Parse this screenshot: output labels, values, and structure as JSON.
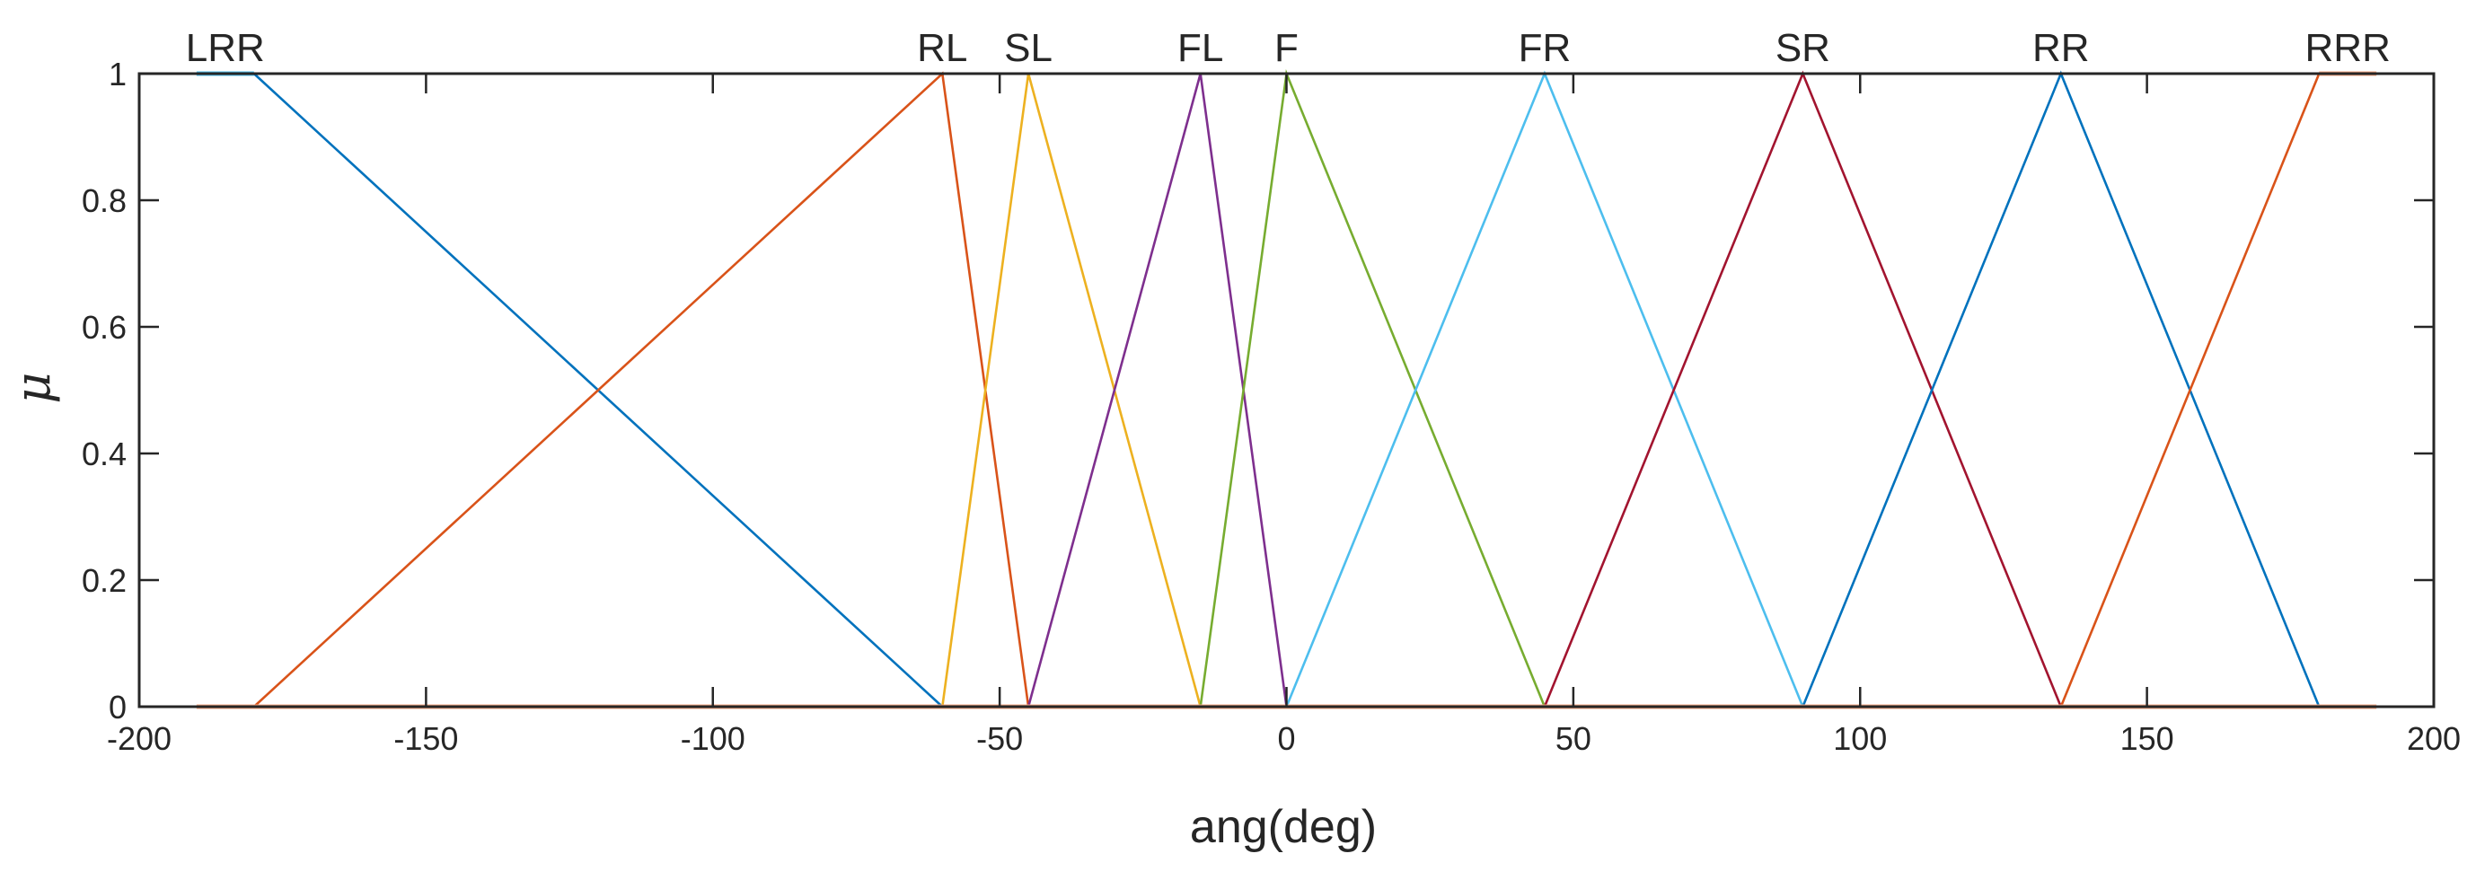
{
  "chart_data": {
    "type": "line",
    "xlabel": "ang(deg)",
    "ylabel": "μ",
    "xlim": [
      -200,
      200
    ],
    "ylim": [
      0,
      1
    ],
    "xticks": [
      -200,
      -150,
      -100,
      -50,
      0,
      50,
      100,
      150,
      200
    ],
    "yticks": [
      0,
      0.2,
      0.4,
      0.6,
      0.8,
      1
    ],
    "grid": false,
    "box": true,
    "series": [
      {
        "name": "LRR",
        "color": "#4DBEEE",
        "x": [
          -190,
          -180
        ],
        "y": [
          1,
          1
        ]
      },
      {
        "name": "LRR",
        "color": "#0072BD",
        "x": [
          -180,
          -60
        ],
        "y": [
          1,
          0
        ]
      },
      {
        "name": "RL",
        "color": "#D95319",
        "x": [
          -180,
          -60,
          -45
        ],
        "y": [
          0,
          1,
          0
        ]
      },
      {
        "name": "SL",
        "color": "#EDB120",
        "x": [
          -60,
          -45,
          -15
        ],
        "y": [
          0,
          1,
          0
        ]
      },
      {
        "name": "FL",
        "color": "#7E2F8E",
        "x": [
          -45,
          -15,
          0
        ],
        "y": [
          0,
          1,
          0
        ]
      },
      {
        "name": "F",
        "color": "#77AC30",
        "x": [
          -15,
          0,
          45
        ],
        "y": [
          0,
          1,
          0
        ]
      },
      {
        "name": "FR",
        "color": "#4DBEEE",
        "x": [
          0,
          45,
          90
        ],
        "y": [
          0,
          1,
          0
        ]
      },
      {
        "name": "SR",
        "color": "#A2142F",
        "x": [
          45,
          90,
          135
        ],
        "y": [
          0,
          1,
          0
        ]
      },
      {
        "name": "RR",
        "color": "#0072BD",
        "x": [
          90,
          135,
          180
        ],
        "y": [
          0,
          1,
          0
        ]
      },
      {
        "name": "RR",
        "color": "#4DBEEE",
        "x": [
          180,
          190
        ],
        "y": [
          0,
          0
        ]
      },
      {
        "name": "RRR",
        "color": "#D95319",
        "x": [
          135,
          180
        ],
        "y": [
          0,
          1
        ]
      },
      {
        "name": "RRR",
        "color": "#F4A582",
        "x": [
          180,
          190
        ],
        "y": [
          1,
          1
        ]
      },
      {
        "name": "baseline",
        "color": "#F4A582",
        "x": [
          -190,
          190
        ],
        "y": [
          0,
          0
        ]
      }
    ],
    "labels": [
      {
        "text": "LRR",
        "x": -185
      },
      {
        "text": "RL",
        "x": -60
      },
      {
        "text": "SL",
        "x": -45
      },
      {
        "text": "FL",
        "x": -15
      },
      {
        "text": "F",
        "x": 0
      },
      {
        "text": "FR",
        "x": 45
      },
      {
        "text": "SR",
        "x": 90
      },
      {
        "text": "RR",
        "x": 135
      },
      {
        "text": "RRR",
        "x": 185
      }
    ]
  }
}
